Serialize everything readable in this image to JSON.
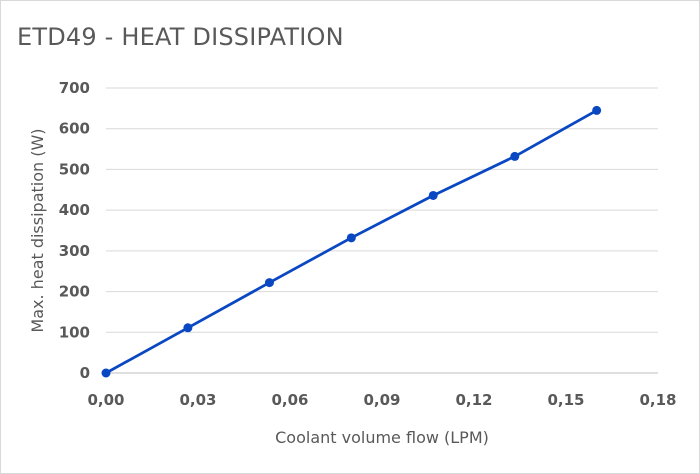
{
  "chart_data": {
    "type": "line",
    "title": "ETD49 - HEAT DISSIPATION",
    "xlabel": "Coolant volume flow (LPM)",
    "ylabel": "Max. heat dissipation (W)",
    "xlim": [
      0,
      0.18
    ],
    "ylim": [
      0,
      700
    ],
    "x_ticks": [
      "0,00",
      "0,03",
      "0,06",
      "0,09",
      "0,12",
      "0,15",
      "0,18"
    ],
    "y_ticks": [
      "0",
      "100",
      "200",
      "300",
      "400",
      "500",
      "600",
      "700"
    ],
    "grid": true,
    "legend": "none",
    "series": [
      {
        "color": "#0a47c2",
        "x": [
          0.0,
          0.0267,
          0.0533,
          0.08,
          0.1067,
          0.1333,
          0.16
        ],
        "y": [
          0,
          111,
          222,
          332,
          436,
          532,
          645
        ]
      }
    ]
  }
}
